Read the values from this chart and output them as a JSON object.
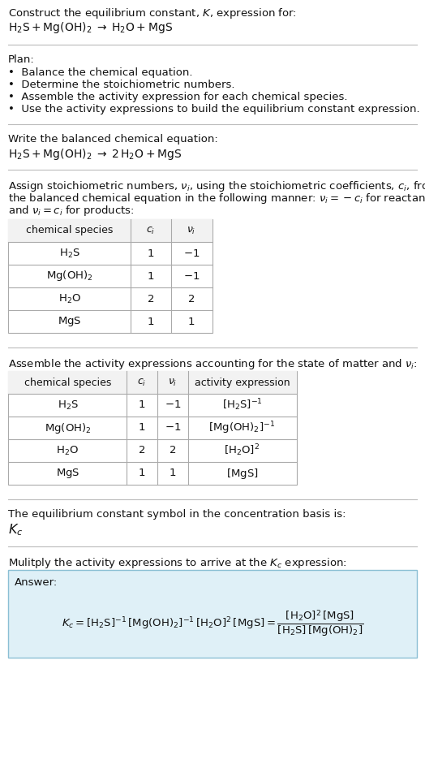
{
  "bg_color": "#ffffff",
  "text_color": "#111111",
  "sep_color": "#bbbbbb",
  "table_border": "#aaaaaa",
  "answer_bg": "#dff0f7",
  "answer_border": "#8bbfd4",
  "font_size": 9.5,
  "sections": {
    "title_line1": "Construct the equilibrium constant, $K$, expression for:",
    "title_line2": "$\\mathrm{H_2S + Mg(OH)_2 \\;\\rightarrow\\; H_2O + MgS}$",
    "plan_header": "Plan:",
    "plan_items": [
      "\\bullet  Balance the chemical equation.",
      "\\bullet  Determine the stoichiometric numbers.",
      "\\bullet  Assemble the activity expression for each chemical species.",
      "\\bullet  Use the activity expressions to build the equilibrium constant expression."
    ],
    "balanced_header": "Write the balanced chemical equation:",
    "balanced_eq": "$\\mathrm{H_2S + Mg(OH)_2 \\;\\rightarrow\\; 2\\,H_2O + MgS}$",
    "stoich_para": "Assign stoichiometric numbers, $\\nu_i$, using the stoichiometric coefficients, $c_i$, from\nthe balanced chemical equation in the following manner: $\\nu_i = -c_i$ for reactants\nand $\\nu_i = c_i$ for products:",
    "table1_header": [
      "chemical species",
      "$c_i$",
      "$\\nu_i$"
    ],
    "table1_rows": [
      [
        "$\\mathrm{H_2S}$",
        "1",
        "$-1$"
      ],
      [
        "$\\mathrm{Mg(OH)_2}$",
        "1",
        "$-1$"
      ],
      [
        "$\\mathrm{H_2O}$",
        "2",
        "2"
      ],
      [
        "$\\mathrm{MgS}$",
        "1",
        "1"
      ]
    ],
    "activity_header": "Assemble the activity expressions accounting for the state of matter and $\\nu_i$:",
    "table2_header": [
      "chemical species",
      "$c_i$",
      "$\\nu_i$",
      "activity expression"
    ],
    "table2_rows": [
      [
        "$\\mathrm{H_2S}$",
        "1",
        "$-1$",
        "$[\\mathrm{H_2S}]^{-1}$"
      ],
      [
        "$\\mathrm{Mg(OH)_2}$",
        "1",
        "$-1$",
        "$[\\mathrm{Mg(OH)_2}]^{-1}$"
      ],
      [
        "$\\mathrm{H_2O}$",
        "2",
        "2",
        "$[\\mathrm{H_2O}]^{2}$"
      ],
      [
        "$\\mathrm{MgS}$",
        "1",
        "1",
        "$[\\mathrm{MgS}]$"
      ]
    ],
    "kc_header": "The equilibrium constant symbol in the concentration basis is:",
    "kc_symbol": "$K_c$",
    "multiply_header": "Mulitply the activity expressions to arrive at the $K_c$ expression:",
    "answer_label": "Answer:",
    "answer_line1": "$K_c = [\\mathrm{H_2S}]^{-1}\\,[\\mathrm{Mg(OH)_2}]^{-1}\\,[\\mathrm{H_2O}]^{2}\\,[\\mathrm{MgS}] = \\dfrac{[\\mathrm{H_2O}]^{2}\\,[\\mathrm{MgS}]}{[\\mathrm{H_2S}]\\,[\\mathrm{Mg(OH)_2}]}$"
  }
}
